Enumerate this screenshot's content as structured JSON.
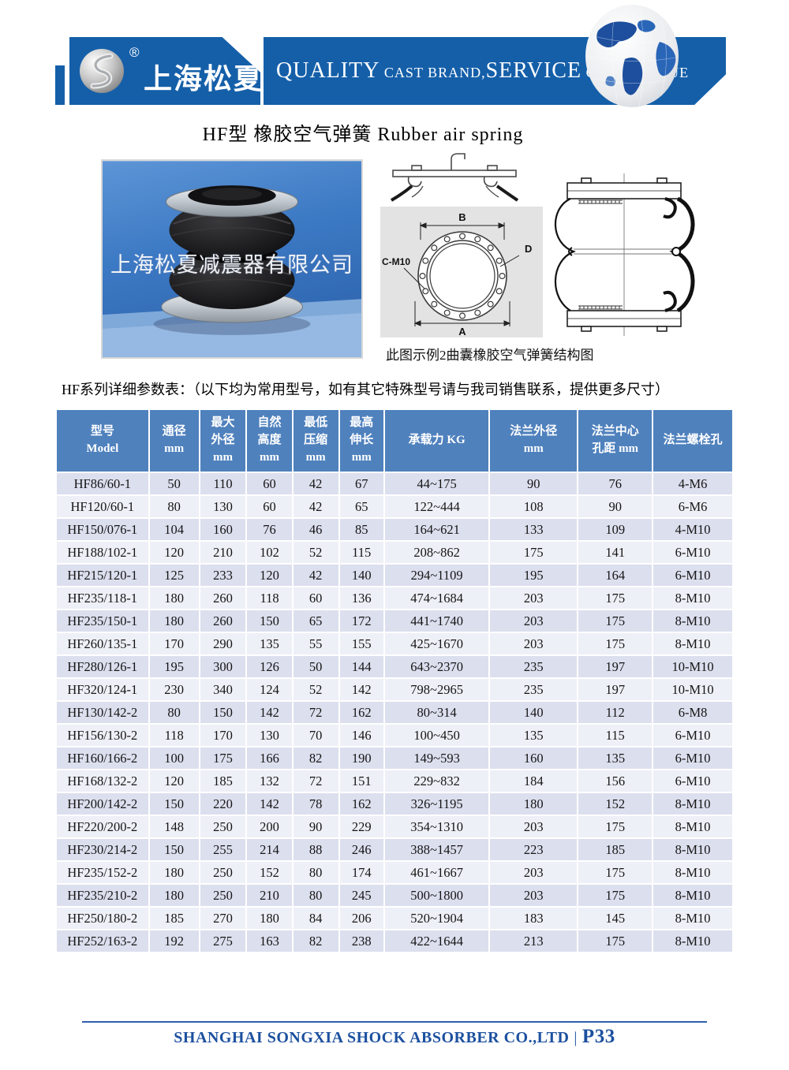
{
  "header": {
    "brand_cn": "上海松夏",
    "reg_mark": "®",
    "slogan": {
      "p1": "QUALITY",
      "p2": " CAST BRAND,",
      "p3": "SERVICE",
      "p4": " CREAT VALUE"
    },
    "banner_blue": "#155fa9"
  },
  "title": "HF型 橡胶空气弹簧  Rubber air spring",
  "photo": {
    "watermark": "上海松夏减震器有限公司"
  },
  "drawing": {
    "label_b": "B",
    "label_a": "A",
    "label_cm10": "C-M10",
    "label_d": "D",
    "caption": "此图示例2曲囊橡胶空气弹簧结构图"
  },
  "note": "HF系列详细参数表：（以下均为常用型号，如有其它特殊型号请与我司销售联系，提供更多尺寸）",
  "table": {
    "header_bg": "#4f81bd",
    "row_dark": "#dcdfee",
    "row_light": "#eef0f7",
    "headers": [
      "型号\nModel",
      "通径\nmm",
      "最大\n外径\nmm",
      "自然\n高度\nmm",
      "最低\n压缩\nmm",
      "最高\n伸长\nmm",
      "承载力 KG",
      "法兰外径\nmm",
      "法兰中心\n孔距 mm",
      "法兰螺栓孔"
    ],
    "rows": [
      [
        "HF86/60-1",
        "50",
        "110",
        "60",
        "42",
        "67",
        "44~175",
        "90",
        "76",
        "4-M6"
      ],
      [
        "HF120/60-1",
        "80",
        "130",
        "60",
        "42",
        "65",
        "122~444",
        "108",
        "90",
        "6-M6"
      ],
      [
        "HF150/076-1",
        "104",
        "160",
        "76",
        "46",
        "85",
        "164~621",
        "133",
        "109",
        "4-M10"
      ],
      [
        "HF188/102-1",
        "120",
        "210",
        "102",
        "52",
        "115",
        "208~862",
        "175",
        "141",
        "6-M10"
      ],
      [
        "HF215/120-1",
        "125",
        "233",
        "120",
        "42",
        "140",
        "294~1109",
        "195",
        "164",
        "6-M10"
      ],
      [
        "HF235/118-1",
        "180",
        "260",
        "118",
        "60",
        "136",
        "474~1684",
        "203",
        "175",
        "8-M10"
      ],
      [
        "HF235/150-1",
        "180",
        "260",
        "150",
        "65",
        "172",
        "441~1740",
        "203",
        "175",
        "8-M10"
      ],
      [
        "HF260/135-1",
        "170",
        "290",
        "135",
        "55",
        "155",
        "425~1670",
        "203",
        "175",
        "8-M10"
      ],
      [
        "HF280/126-1",
        "195",
        "300",
        "126",
        "50",
        "144",
        "643~2370",
        "235",
        "197",
        "10-M10"
      ],
      [
        "HF320/124-1",
        "230",
        "340",
        "124",
        "52",
        "142",
        "798~2965",
        "235",
        "197",
        "10-M10"
      ],
      [
        "HF130/142-2",
        "80",
        "150",
        "142",
        "72",
        "162",
        "80~314",
        "140",
        "112",
        "6-M8"
      ],
      [
        "HF156/130-2",
        "118",
        "170",
        "130",
        "70",
        "146",
        "100~450",
        "135",
        "115",
        "6-M10"
      ],
      [
        "HF160/166-2",
        "100",
        "175",
        "166",
        "82",
        "190",
        "149~593",
        "160",
        "135",
        "6-M10"
      ],
      [
        "HF168/132-2",
        "120",
        "185",
        "132",
        "72",
        "151",
        "229~832",
        "184",
        "156",
        "6-M10"
      ],
      [
        "HF200/142-2",
        "150",
        "220",
        "142",
        "78",
        "162",
        "326~1195",
        "180",
        "152",
        "8-M10"
      ],
      [
        "HF220/200-2",
        "148",
        "250",
        "200",
        "90",
        "229",
        "354~1310",
        "203",
        "175",
        "8-M10"
      ],
      [
        "HF230/214-2",
        "150",
        "255",
        "214",
        "88",
        "246",
        "388~1457",
        "223",
        "185",
        "8-M10"
      ],
      [
        "HF235/152-2",
        "180",
        "250",
        "152",
        "80",
        "174",
        "461~1667",
        "203",
        "175",
        "8-M10"
      ],
      [
        "HF235/210-2",
        "180",
        "250",
        "210",
        "80",
        "245",
        "500~1800",
        "203",
        "175",
        "8-M10"
      ],
      [
        "HF250/180-2",
        "185",
        "270",
        "180",
        "84",
        "206",
        "520~1904",
        "183",
        "145",
        "8-M10"
      ],
      [
        "HF252/163-2",
        "192",
        "275",
        "163",
        "82",
        "238",
        "422~1644",
        "213",
        "175",
        "8-M10"
      ]
    ]
  },
  "footer": {
    "company": "SHANGHAI SONGXIA SHOCK ABSORBER CO.,LTD",
    "separator": "|",
    "page_no": "P33"
  }
}
